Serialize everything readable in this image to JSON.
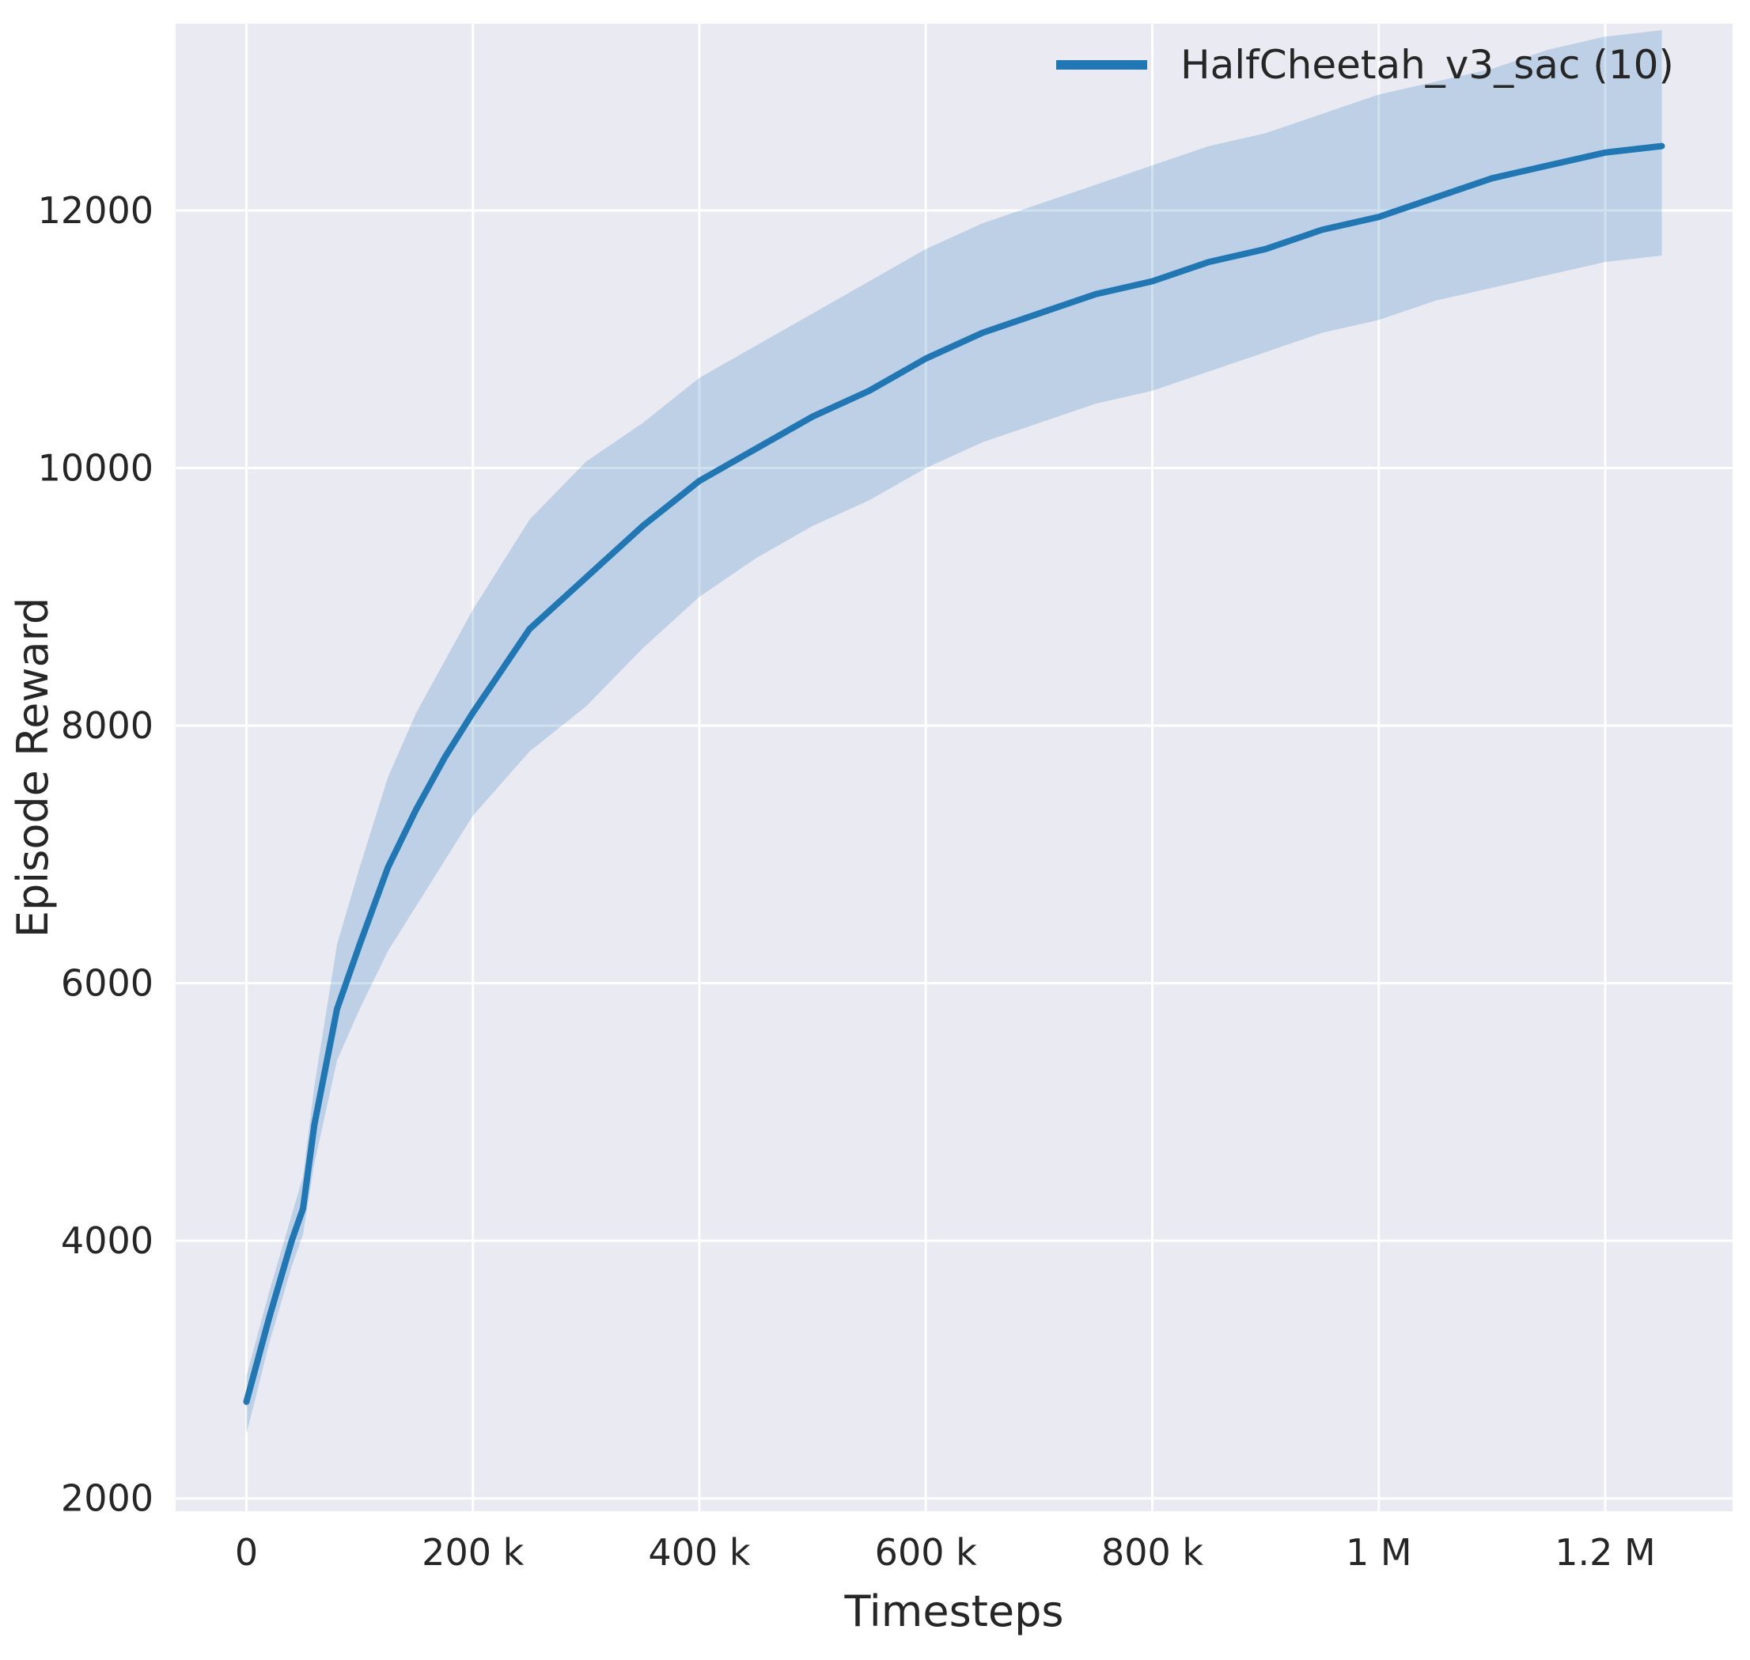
{
  "colors": {
    "plot_background": "#eaeaf2",
    "grid": "#ffffff",
    "line": "#1f77b4",
    "band": "#1f77b4",
    "text": "#262626"
  },
  "chart_data": {
    "type": "line",
    "title": "",
    "xlabel": "Timesteps",
    "ylabel": "Episode Reward",
    "xlim": [
      -62500,
      1312500
    ],
    "ylim": [
      1900,
      13450
    ],
    "grid": true,
    "legend_position": "upper right",
    "x_ticks": [
      {
        "value": 0,
        "label": "0"
      },
      {
        "value": 200000,
        "label": "200 k"
      },
      {
        "value": 400000,
        "label": "400 k"
      },
      {
        "value": 600000,
        "label": "600 k"
      },
      {
        "value": 800000,
        "label": "800 k"
      },
      {
        "value": 1000000,
        "label": "1 M"
      },
      {
        "value": 1200000,
        "label": "1.2 M"
      }
    ],
    "y_ticks": [
      {
        "value": 2000,
        "label": "2000"
      },
      {
        "value": 4000,
        "label": "4000"
      },
      {
        "value": 6000,
        "label": "6000"
      },
      {
        "value": 8000,
        "label": "8000"
      },
      {
        "value": 10000,
        "label": "10000"
      },
      {
        "value": 12000,
        "label": "12000"
      }
    ],
    "series": [
      {
        "name": "HalfCheetah_v3_sac (10)",
        "color": "#1f77b4",
        "band_opacity": 0.22,
        "x": [
          0,
          20000,
          40000,
          50000,
          60000,
          80000,
          100000,
          125000,
          150000,
          175000,
          200000,
          250000,
          300000,
          350000,
          400000,
          450000,
          500000,
          550000,
          600000,
          650000,
          700000,
          750000,
          800000,
          850000,
          900000,
          950000,
          1000000,
          1050000,
          1100000,
          1150000,
          1200000,
          1250000
        ],
        "mean": [
          2750,
          3400,
          4000,
          4250,
          4900,
          5800,
          6300,
          6900,
          7350,
          7750,
          8100,
          8750,
          9150,
          9550,
          9900,
          10150,
          10400,
          10600,
          10850,
          11050,
          11200,
          11350,
          11450,
          11600,
          11700,
          11850,
          11950,
          12100,
          12250,
          12350,
          12450,
          12500
        ],
        "lower": [
          2500,
          3200,
          3800,
          4050,
          4600,
          5400,
          5800,
          6250,
          6600,
          6950,
          7300,
          7800,
          8150,
          8600,
          9000,
          9300,
          9550,
          9750,
          10000,
          10200,
          10350,
          10500,
          10600,
          10750,
          10900,
          11050,
          11150,
          11300,
          11400,
          11500,
          11600,
          11650
        ],
        "upper": [
          2950,
          3600,
          4200,
          4500,
          5200,
          6300,
          6900,
          7600,
          8100,
          8500,
          8900,
          9600,
          10050,
          10350,
          10700,
          10950,
          11200,
          11450,
          11700,
          11900,
          12050,
          12200,
          12350,
          12500,
          12600,
          12750,
          12900,
          13000,
          13100,
          13250,
          13350,
          13400
        ]
      }
    ]
  }
}
